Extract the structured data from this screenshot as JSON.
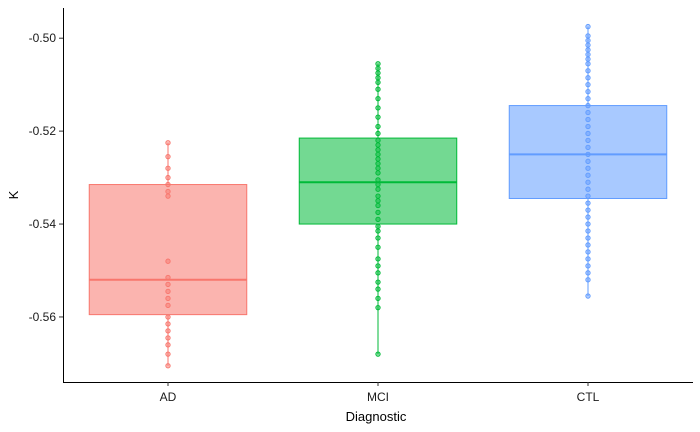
{
  "chart_data": {
    "type": "boxplot",
    "xlabel": "Diagnostic",
    "ylabel": "K",
    "ylim": [
      -0.574,
      -0.4935
    ],
    "yticks": [
      -0.56,
      -0.54,
      -0.52,
      -0.5
    ],
    "ytick_labels": [
      "-0.56",
      "-0.54",
      "-0.52",
      "-0.50"
    ],
    "grid": false,
    "categories": [
      "AD",
      "MCI",
      "CTL"
    ],
    "colors": {
      "AD": {
        "fill": "#F8766D",
        "line": "#F8766D"
      },
      "MCI": {
        "fill": "#00BA38",
        "line": "#00BA38"
      },
      "CTL": {
        "fill": "#619CFF",
        "line": "#619CFF"
      }
    },
    "boxes": [
      {
        "category": "AD",
        "whisker_low": -0.5705,
        "q1": -0.5595,
        "median": -0.552,
        "q3": -0.5315,
        "whisker_high": -0.5225,
        "points": [
          -0.5225,
          -0.5255,
          -0.528,
          -0.53,
          -0.5315,
          -0.533,
          -0.534,
          -0.548,
          -0.5515,
          -0.553,
          -0.5545,
          -0.556,
          -0.5575,
          -0.56,
          -0.5615,
          -0.563,
          -0.5645,
          -0.566,
          -0.568,
          -0.5705
        ]
      },
      {
        "category": "MCI",
        "whisker_low": -0.568,
        "q1": -0.54,
        "median": -0.531,
        "q3": -0.5215,
        "whisker_high": -0.5055,
        "points": [
          -0.5055,
          -0.5065,
          -0.5075,
          -0.5085,
          -0.5095,
          -0.511,
          -0.513,
          -0.515,
          -0.517,
          -0.519,
          -0.5205,
          -0.522,
          -0.523,
          -0.524,
          -0.525,
          -0.526,
          -0.527,
          -0.528,
          -0.529,
          -0.5305,
          -0.5315,
          -0.5325,
          -0.534,
          -0.535,
          -0.536,
          -0.5375,
          -0.539,
          -0.5405,
          -0.5415,
          -0.543,
          -0.545,
          -0.5475,
          -0.549,
          -0.5505,
          -0.5525,
          -0.554,
          -0.556,
          -0.558,
          -0.568
        ]
      },
      {
        "category": "CTL",
        "whisker_low": -0.5555,
        "q1": -0.5345,
        "median": -0.525,
        "q3": -0.5145,
        "whisker_high": -0.4975,
        "points": [
          -0.4975,
          -0.4995,
          -0.5005,
          -0.5015,
          -0.5025,
          -0.5035,
          -0.5045,
          -0.5055,
          -0.507,
          -0.5085,
          -0.51,
          -0.5115,
          -0.513,
          -0.5145,
          -0.516,
          -0.5175,
          -0.519,
          -0.5205,
          -0.522,
          -0.5235,
          -0.525,
          -0.5265,
          -0.528,
          -0.5295,
          -0.531,
          -0.5325,
          -0.534,
          -0.5355,
          -0.537,
          -0.5385,
          -0.54,
          -0.5415,
          -0.543,
          -0.5445,
          -0.546,
          -0.5475,
          -0.549,
          -0.5505,
          -0.552,
          -0.5555
        ]
      }
    ]
  }
}
